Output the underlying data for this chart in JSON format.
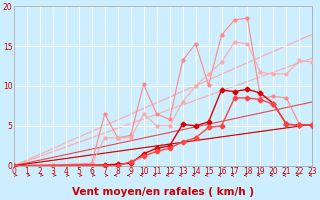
{
  "background_color": "#cceeff",
  "grid_color": "#ffffff",
  "xlabel": "Vent moyen/en rafales ( km/h )",
  "xlim": [
    0,
    23
  ],
  "ylim": [
    0,
    20
  ],
  "xticks": [
    0,
    1,
    2,
    3,
    4,
    5,
    6,
    7,
    8,
    9,
    10,
    11,
    12,
    13,
    14,
    15,
    16,
    17,
    18,
    19,
    20,
    21,
    22,
    23
  ],
  "yticks": [
    0,
    5,
    10,
    15,
    20
  ],
  "lines": [
    {
      "x": [
        0,
        23
      ],
      "y": [
        0,
        16.5
      ],
      "color": "#ffaaaa",
      "lw": 0.8,
      "marker": null,
      "ms": 0,
      "zorder": 1
    },
    {
      "x": [
        0,
        23
      ],
      "y": [
        0,
        13.5
      ],
      "color": "#ffaaaa",
      "lw": 0.8,
      "marker": null,
      "ms": 0,
      "zorder": 1
    },
    {
      "x": [
        0,
        23
      ],
      "y": [
        0,
        5.2
      ],
      "color": "#ffaaaa",
      "lw": 0.8,
      "marker": null,
      "ms": 0,
      "zorder": 1
    },
    {
      "x": [
        0,
        23
      ],
      "y": [
        0,
        8.0
      ],
      "color": "#ee4444",
      "lw": 0.8,
      "marker": null,
      "ms": 0,
      "zorder": 2
    },
    {
      "x": [
        0,
        23
      ],
      "y": [
        0,
        5.2
      ],
      "color": "#cc0000",
      "lw": 0.8,
      "marker": null,
      "ms": 0,
      "zorder": 2
    },
    {
      "x": [
        0,
        3,
        6,
        7,
        8,
        9,
        10,
        11,
        12,
        13,
        14,
        15,
        16,
        17,
        18,
        19,
        20,
        21,
        22,
        23
      ],
      "y": [
        0,
        0.1,
        0.3,
        6.5,
        3.5,
        3.8,
        10.2,
        6.5,
        5.8,
        13.2,
        15.3,
        10.1,
        16.4,
        18.3,
        18.5,
        8.5,
        8.7,
        8.5,
        5.2,
        5.1
      ],
      "color": "#ff8888",
      "lw": 0.8,
      "marker": "o",
      "ms": 2.0,
      "zorder": 3
    },
    {
      "x": [
        0,
        6,
        7,
        8,
        9,
        10,
        11,
        12,
        13,
        14,
        15,
        16,
        17,
        18,
        19,
        20,
        21,
        22,
        23
      ],
      "y": [
        0,
        0.2,
        3.5,
        3.5,
        3.5,
        6.5,
        5.0,
        5.0,
        8.0,
        10.0,
        11.5,
        13.0,
        15.5,
        15.3,
        11.7,
        11.5,
        11.5,
        13.2,
        13.0
      ],
      "color": "#ffaaaa",
      "lw": 0.8,
      "marker": "o",
      "ms": 2.0,
      "zorder": 3
    },
    {
      "x": [
        0,
        7,
        8,
        9,
        10,
        11,
        12,
        13,
        14,
        15,
        16,
        17,
        18,
        19,
        20,
        21,
        22,
        23
      ],
      "y": [
        0,
        0.1,
        0.2,
        0.3,
        1.5,
        2.2,
        2.5,
        5.2,
        5.0,
        5.5,
        9.5,
        9.3,
        9.6,
        9.1,
        7.8,
        5.2,
        5.1,
        5.1
      ],
      "color": "#dd0000",
      "lw": 1.0,
      "marker": "D",
      "ms": 2.5,
      "zorder": 4
    },
    {
      "x": [
        0,
        7,
        8,
        9,
        10,
        11,
        12,
        13,
        14,
        15,
        16,
        17,
        18,
        19,
        20,
        21,
        22,
        23
      ],
      "y": [
        0,
        0.0,
        0.0,
        0.5,
        1.2,
        1.8,
        2.2,
        3.0,
        3.5,
        4.8,
        5.0,
        8.5,
        8.5,
        8.3,
        7.7,
        5.2,
        5.1,
        5.1
      ],
      "color": "#ff4444",
      "lw": 1.0,
      "marker": "D",
      "ms": 2.5,
      "zorder": 4
    }
  ],
  "label_color": "#cc0000",
  "tick_fontsize": 5.5,
  "xlabel_fontsize": 7.5
}
